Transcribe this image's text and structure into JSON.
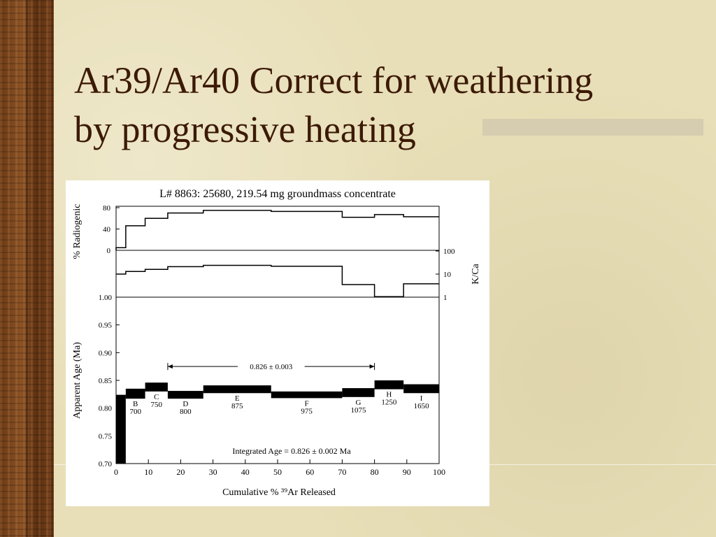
{
  "slide": {
    "title_line1": "Ar39/Ar40 Correct for weathering",
    "title_line2": "by progressive heating"
  },
  "colors": {
    "background": "#e8dfb8",
    "title_text": "#3c1a06",
    "side_strip": "#7a4620"
  },
  "chart_data": {
    "type": "line",
    "title": "L# 8863:  25680, 219.54 mg groundmass concentrate",
    "xlabel": "Cumulative % ³⁹Ar Released",
    "xlim": [
      0,
      100
    ],
    "xticks": [
      0,
      10,
      20,
      30,
      40,
      50,
      60,
      70,
      80,
      90,
      100
    ],
    "panels": {
      "radiogenic": {
        "ylabel": "% Radiogenic",
        "ylim": [
          0,
          80
        ],
        "yticks": [
          0,
          40,
          80
        ],
        "steps": [
          {
            "x0": 0,
            "x1": 3,
            "y": 5
          },
          {
            "x0": 3,
            "x1": 9,
            "y": 46
          },
          {
            "x0": 9,
            "x1": 16,
            "y": 60
          },
          {
            "x0": 16,
            "x1": 27,
            "y": 70
          },
          {
            "x0": 27,
            "x1": 48,
            "y": 75
          },
          {
            "x0": 48,
            "x1": 70,
            "y": 73
          },
          {
            "x0": 70,
            "x1": 80,
            "y": 62
          },
          {
            "x0": 80,
            "x1": 89,
            "y": 67
          },
          {
            "x0": 89,
            "x1": 100,
            "y": 63
          }
        ]
      },
      "kca": {
        "ylabel": "K/Ca",
        "ylim": [
          1,
          100
        ],
        "scale": "log",
        "yticks": [
          1,
          10,
          100
        ],
        "steps": [
          {
            "x0": 0,
            "x1": 3,
            "y": 10
          },
          {
            "x0": 3,
            "x1": 9,
            "y": 13
          },
          {
            "x0": 9,
            "x1": 16,
            "y": 16
          },
          {
            "x0": 16,
            "x1": 27,
            "y": 21
          },
          {
            "x0": 27,
            "x1": 48,
            "y": 24
          },
          {
            "x0": 48,
            "x1": 70,
            "y": 22
          },
          {
            "x0": 70,
            "x1": 80,
            "y": 3.5
          },
          {
            "x0": 80,
            "x1": 89,
            "y": 1.05
          },
          {
            "x0": 89,
            "x1": 100,
            "y": 3.8
          }
        ]
      },
      "age": {
        "ylabel": "Apparent Age (Ma)",
        "ylim": [
          0.7,
          1.0
        ],
        "yticks": [
          "0.70",
          "0.75",
          "0.80",
          "0.85",
          "0.90",
          "0.95",
          "1.00"
        ],
        "steps": [
          {
            "x0": 0,
            "x1": 3,
            "center": 0.762,
            "err": 0.062,
            "step": "",
            "temp": ""
          },
          {
            "x0": 3,
            "x1": 9,
            "center": 0.826,
            "err": 0.009,
            "step": "B",
            "temp": "700"
          },
          {
            "x0": 9,
            "x1": 16,
            "center": 0.838,
            "err": 0.008,
            "step": "C",
            "temp": "750"
          },
          {
            "x0": 16,
            "x1": 27,
            "center": 0.824,
            "err": 0.007,
            "step": "D",
            "temp": "800"
          },
          {
            "x0": 27,
            "x1": 48,
            "center": 0.834,
            "err": 0.007,
            "step": "E",
            "temp": "875"
          },
          {
            "x0": 48,
            "x1": 70,
            "center": 0.824,
            "err": 0.006,
            "step": "F",
            "temp": "975"
          },
          {
            "x0": 70,
            "x1": 80,
            "center": 0.828,
            "err": 0.008,
            "step": "G",
            "temp": "1075"
          },
          {
            "x0": 80,
            "x1": 89,
            "center": 0.842,
            "err": 0.008,
            "step": "H",
            "temp": "1250"
          },
          {
            "x0": 89,
            "x1": 100,
            "center": 0.835,
            "err": 0.008,
            "step": "I",
            "temp": "1650"
          }
        ],
        "plateau": {
          "x0": 16,
          "x1": 80,
          "y": 0.875,
          "label": "0.826 ± 0.003"
        },
        "integrated_age": "Integrated Age = 0.826 ± 0.002 Ma"
      }
    }
  }
}
